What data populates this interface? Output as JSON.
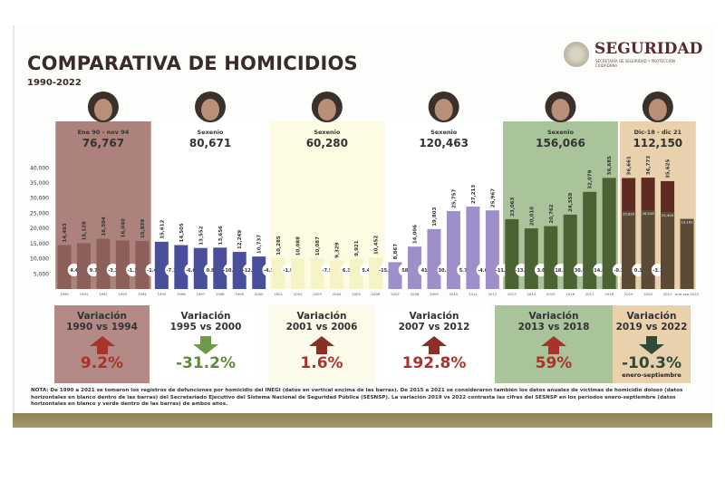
{
  "header": {
    "title": "COMPARATIVA DE HOMICIDIOS",
    "subtitle": "1990-2022",
    "logo_name": "SEGURIDAD",
    "logo_sub": "SECRETARÍA DE SEGURIDAD Y PROTECCIÓN CIUDADANA"
  },
  "chart_data": {
    "type": "bar",
    "title": "COMPARATIVA DE HOMICIDIOS",
    "ylabel": "",
    "ylim": [
      0,
      40000
    ],
    "yticks": [
      "40,000",
      "35,000",
      "30,000",
      "25,000",
      "20,000",
      "15,000",
      "10,000",
      "5,000"
    ],
    "ytick_values": [
      40000,
      35000,
      30000,
      25000,
      20000,
      15000,
      10000,
      5000
    ],
    "categories": [
      "1990",
      "1991",
      "1992",
      "1993",
      "1994",
      "1995",
      "1996",
      "1997",
      "1998",
      "1999",
      "2000",
      "2001",
      "2002",
      "2003",
      "2004",
      "2005",
      "2006",
      "2007",
      "2008",
      "2009",
      "2010",
      "2011",
      "2012",
      "2013",
      "2014",
      "2015",
      "2016",
      "2017",
      "2018",
      "2019",
      "2020",
      "2021",
      "ene-sep 2022"
    ],
    "series": [
      {
        "name": "Defunciones por homicidio (INEGI)",
        "values": [
          14493,
          15128,
          16594,
          16040,
          15839,
          15612,
          14505,
          13552,
          13656,
          12249,
          10737,
          10285,
          10088,
          10087,
          9329,
          9921,
          10452,
          8867,
          14006,
          19803,
          25757,
          27213,
          25967,
          23063,
          20010,
          20762,
          24559,
          32079,
          36685,
          36661,
          36773,
          35625,
          null
        ]
      },
      {
        "name": "Víctimas de homicidio doloso (SESNSP)",
        "values": [
          null,
          null,
          null,
          null,
          null,
          null,
          null,
          null,
          null,
          null,
          null,
          null,
          null,
          null,
          null,
          null,
          null,
          null,
          null,
          null,
          null,
          null,
          null,
          null,
          null,
          null,
          null,
          null,
          null,
          25820,
          26016,
          25404,
          23161
        ]
      }
    ],
    "annual_variation_pct": [
      "4.4",
      "9.7",
      "-3.3",
      "-1.3",
      "-1.4",
      "-7.1",
      "-6.6",
      "0.8",
      "-10.3",
      "-12.3",
      "-4.3",
      "-1.9",
      "",
      "-7.5",
      "6.3",
      "5.4",
      "-15.2",
      "58",
      "41",
      "30.1",
      "5.7",
      "-4.6",
      "-11.2",
      "-13.2",
      "3.8",
      "18.3",
      "30.6",
      "14.4",
      "-0.1",
      "0.3",
      "-3.1",
      "",
      ""
    ],
    "periods": [
      {
        "label": "Ene 90 - nov 94",
        "total": "76,767",
        "from": 0,
        "to": 4,
        "bg": "#ad817c",
        "bar": "#8d5f5a"
      },
      {
        "label": "Sexenio",
        "total": "80,671",
        "from": 5,
        "to": 10,
        "bg": "#ffffff",
        "bar": "#4a4f9c"
      },
      {
        "label": "Sexenio",
        "total": "60,280",
        "from": 11,
        "to": 16,
        "bg": "#fdfbe2",
        "bar": "#f6f3c6"
      },
      {
        "label": "Sexenio",
        "total": "120,463",
        "from": 17,
        "to": 22,
        "bg": "#ffffff",
        "bar": "#9e8fcb"
      },
      {
        "label": "Sexenio",
        "total": "156,066",
        "from": 23,
        "to": 28,
        "bg": "#a9c39a",
        "bar": "#4b6232"
      },
      {
        "label": "Dic-18 - dic 21",
        "total": "112,150",
        "from": 29,
        "to": 32,
        "bg": "#e9d1ad",
        "bar": "#5b4a36",
        "bar_top": "#5e2a22"
      }
    ]
  },
  "variations": [
    {
      "title1": "Variación",
      "title2": "1990 vs 1994",
      "value": "9.2%",
      "direction": "up",
      "color": "#a8332b",
      "bg": "#b48a86"
    },
    {
      "title1": "Variación",
      "title2": "1995 vs 2000",
      "value": "-31.2%",
      "direction": "down",
      "color": "#6f9a4a",
      "bg": "#ffffff"
    },
    {
      "title1": "Variación",
      "title2": "2001 vs 2006",
      "value": "1.6%",
      "direction": "up",
      "color": "#8a2e26",
      "bg": "#fcfbea"
    },
    {
      "title1": "Variación",
      "title2": "2007 vs 2012",
      "value": "192.8%",
      "direction": "up",
      "color": "#8a2e26",
      "bg": "#ffffff"
    },
    {
      "title1": "Variación",
      "title2": "2013 vs 2018",
      "value": "59%",
      "direction": "up",
      "color": "#a8332b",
      "bg": "#a9c39a"
    },
    {
      "title1": "Variación",
      "title2": "2019 vs 2022",
      "value": "-10.3%",
      "direction": "down",
      "color": "#2f4a35",
      "bg": "#e9d1ad",
      "sub": "enero-septiembre"
    }
  ],
  "note": "NOTA: De 1990 a 2021 se tomaron los registros de defunciones por homicidio del INEGI (datos en vertical encima de las barras). De 2015 a 2021 se consideraron también los datos anuales de víctimas de homicidio doloso (datos horizontales en blanco dentro de las barras) del Secretariado Ejecutivo del Sistema Nacional de Seguridad Pública (SESNSP). La variación 2019 vs 2022 contrasta las cifras del SESNSP en los periodos enero-septiembre (datos horizontales en blanco y verde dentro de las barras) de ambos años."
}
